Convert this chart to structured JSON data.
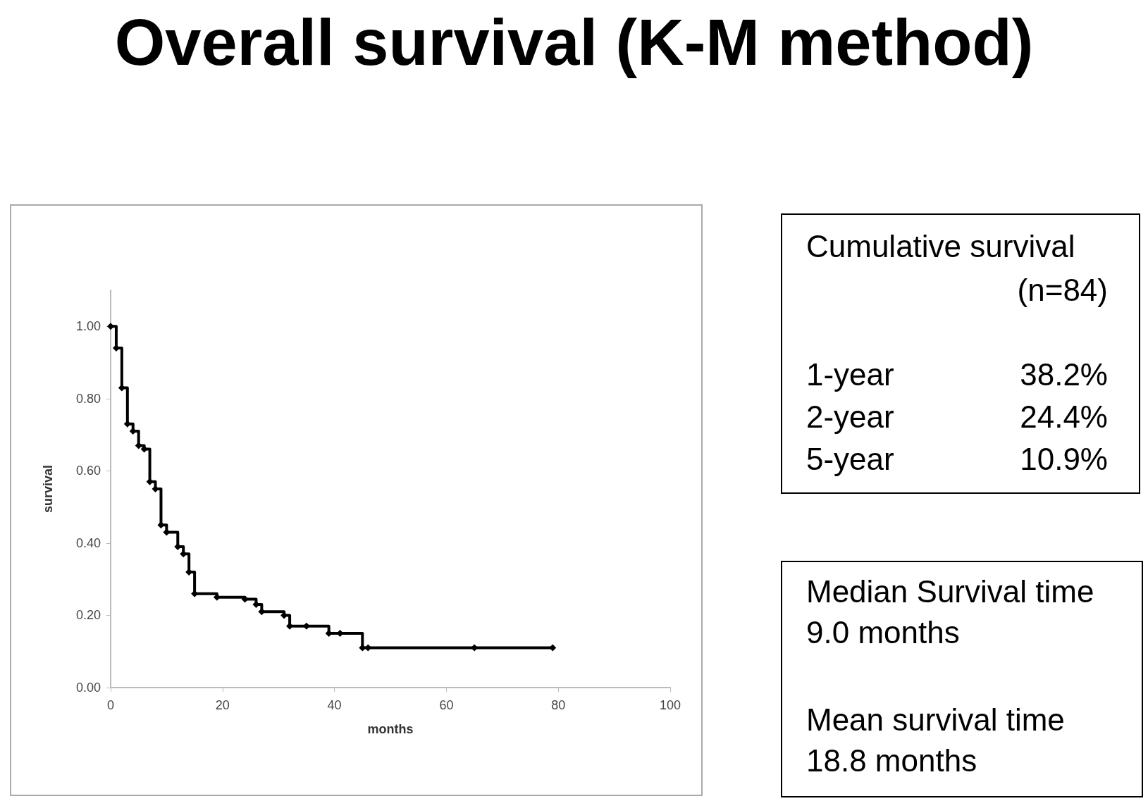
{
  "chart_data": {
    "type": "step",
    "title": "Overall survival (K-M method)",
    "xlabel": "months",
    "ylabel": "survival",
    "x": [
      0,
      1,
      2,
      3,
      4,
      5,
      6,
      7,
      8,
      9,
      10,
      12,
      13,
      14,
      15,
      19,
      24,
      26,
      27,
      31,
      32,
      35,
      39,
      41,
      45,
      46,
      65,
      79
    ],
    "series": [
      {
        "color": "#000000",
        "values": [
          1.0,
          0.94,
          0.83,
          0.73,
          0.71,
          0.67,
          0.66,
          0.57,
          0.55,
          0.45,
          0.43,
          0.39,
          0.37,
          0.32,
          0.26,
          0.25,
          0.245,
          0.23,
          0.21,
          0.2,
          0.17,
          0.17,
          0.15,
          0.15,
          0.11,
          0.11,
          0.11,
          0.11
        ]
      }
    ],
    "xlim": [
      0,
      100
    ],
    "xticks": [
      0,
      20,
      40,
      60,
      80,
      100
    ],
    "ylim": [
      0,
      1.1
    ],
    "yticks": [
      {
        "value": 0,
        "label": "0.00"
      },
      {
        "value": 0.2,
        "label": "0.20"
      },
      {
        "value": 0.4,
        "label": "0.40"
      },
      {
        "value": 0.6,
        "label": "0.60"
      },
      {
        "value": 0.8,
        "label": "0.80"
      },
      {
        "value": 1.0,
        "label": "1.00"
      }
    ],
    "grid": false,
    "marker": "diamond",
    "line_style": "solid",
    "annotations": [
      "Cumulative survival",
      "(n=84)",
      "1-year",
      "38.2%",
      "2-year",
      "24.4%",
      "5-year",
      "10.9%",
      "Median Survival time",
      "9.0 months",
      "Mean survival time",
      "18.8 months"
    ]
  }
}
